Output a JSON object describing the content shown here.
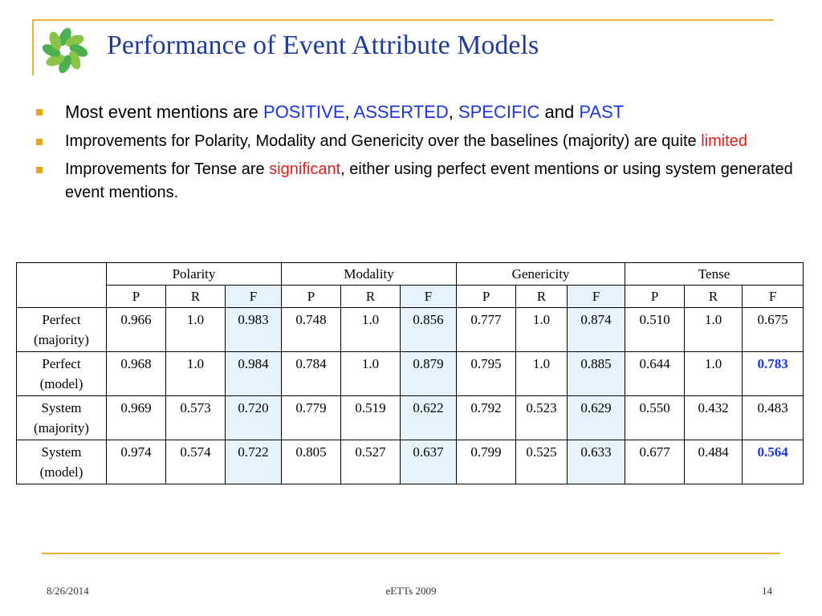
{
  "slide": {
    "title": "Performance of Event Attribute Models",
    "bullets": {
      "b1": {
        "prefix": "Most event mentions are ",
        "w1": "POSITIVE",
        "sep1": ", ",
        "w2": "ASSERTED",
        "sep2": ", ",
        "w3": "SPECIFIC",
        "sep3": " and ",
        "w4": "PAST"
      },
      "b2": {
        "text": "Improvements for Polarity, Modality and Genericity over the baselines (majority) are quite ",
        "highlight": "limited"
      },
      "b3": {
        "prefix": "Improvements for Tense are ",
        "highlight": "significant",
        "suffix": ", either using perfect event mentions or using system generated event mentions."
      }
    },
    "table": {
      "groups": [
        "Polarity",
        "Modality",
        "Genericity",
        "Tense"
      ],
      "subcols": [
        "P",
        "R",
        "F"
      ],
      "rows": [
        {
          "label": [
            "Perfect",
            "(majority)"
          ],
          "values": [
            "0.966",
            "1.0",
            "0.983",
            "0.748",
            "1.0",
            "0.856",
            "0.777",
            "1.0",
            "0.874",
            "0.510",
            "1.0",
            "0.675"
          ]
        },
        {
          "label": [
            "Perfect",
            "(model)"
          ],
          "values": [
            "0.968",
            "1.0",
            "0.984",
            "0.784",
            "1.0",
            "0.879",
            "0.795",
            "1.0",
            "0.885",
            "0.644",
            "1.0",
            "0.783"
          ]
        },
        {
          "label": [
            "System",
            "(majority)"
          ],
          "values": [
            "0.969",
            "0.573",
            "0.720",
            "0.779",
            "0.519",
            "0.622",
            "0.792",
            "0.523",
            "0.629",
            "0.550",
            "0.432",
            "0.483"
          ]
        },
        {
          "label": [
            "System",
            "(model)"
          ],
          "values": [
            "0.974",
            "0.574",
            "0.722",
            "0.805",
            "0.527",
            "0.637",
            "0.799",
            "0.525",
            "0.633",
            "0.677",
            "0.484",
            "0.564"
          ]
        }
      ]
    },
    "footer": {
      "date": "8/26/2014",
      "center": "eETTs 2009",
      "page": "14"
    },
    "colors": {
      "title": "#1f3b9c",
      "accent_gold": "#e8b43a",
      "highlight_blue": "#1c35e6",
      "highlight_red": "#e31b1b",
      "f_column_shade": "#e6f3fc",
      "logo_green": "#4caf50"
    },
    "icons": {
      "logo": "green-pinwheel-logo-icon",
      "bullet": "square-bullet-icon"
    }
  }
}
